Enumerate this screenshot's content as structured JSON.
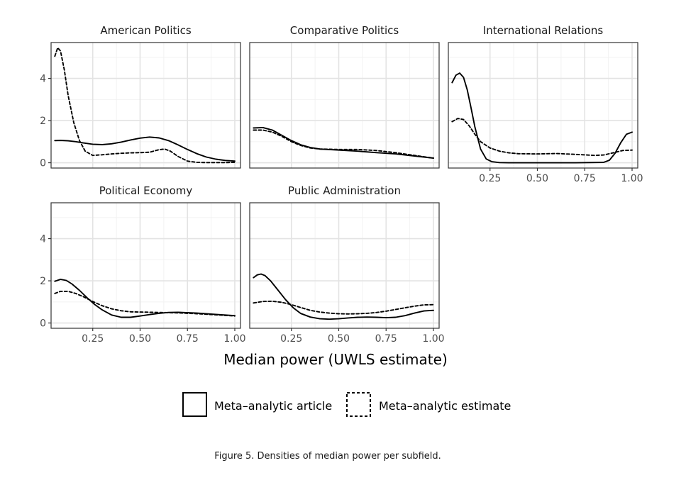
{
  "chart_data": {
    "type": "line",
    "x_axis_title": "Median power (UWLS estimate)",
    "xlim": [
      0.03,
      1.03
    ],
    "ylim": [
      -0.25,
      5.7
    ],
    "x_ticks": [
      "0.25",
      "0.50",
      "0.75",
      "1.00"
    ],
    "x_tick_values": [
      0.25,
      0.5,
      0.75,
      1.0
    ],
    "y_ticks": [
      "0",
      "2",
      "4"
    ],
    "y_tick_values": [
      0,
      2,
      4
    ],
    "grid": true,
    "legend": {
      "placement": "bottom",
      "entries": [
        {
          "name": "Meta–analytic article",
          "style": "solid"
        },
        {
          "name": "Meta–analytic estimate",
          "style": "dashed"
        }
      ]
    },
    "caption": "Figure 5. Densities of median power per subfield.",
    "panels": [
      {
        "title": "American Politics",
        "series": [
          {
            "name": "Meta–analytic article",
            "style": "solid",
            "x": [
              0.05,
              0.08,
              0.12,
              0.16,
              0.2,
              0.25,
              0.3,
              0.35,
              0.4,
              0.45,
              0.5,
              0.55,
              0.6,
              0.65,
              0.7,
              0.75,
              0.8,
              0.85,
              0.9,
              0.95,
              1.0
            ],
            "y": [
              1.05,
              1.06,
              1.04,
              1.0,
              0.94,
              0.88,
              0.86,
              0.9,
              0.98,
              1.08,
              1.17,
              1.22,
              1.18,
              1.05,
              0.85,
              0.63,
              0.43,
              0.27,
              0.17,
              0.11,
              0.08
            ]
          },
          {
            "name": "Meta–analytic estimate",
            "style": "dashed",
            "x": [
              0.05,
              0.065,
              0.08,
              0.1,
              0.12,
              0.15,
              0.18,
              0.21,
              0.25,
              0.3,
              0.35,
              0.4,
              0.45,
              0.5,
              0.55,
              0.6,
              0.63,
              0.66,
              0.7,
              0.75,
              0.8,
              0.85,
              0.9,
              0.95,
              1.0
            ],
            "y": [
              5.05,
              5.45,
              5.3,
              4.4,
              3.2,
              1.9,
              1.05,
              0.55,
              0.35,
              0.38,
              0.42,
              0.45,
              0.47,
              0.48,
              0.5,
              0.62,
              0.65,
              0.55,
              0.3,
              0.08,
              0.02,
              0.01,
              0.01,
              0.01,
              0.02
            ]
          }
        ]
      },
      {
        "title": "Comparative Politics",
        "series": [
          {
            "name": "Meta–analytic article",
            "style": "solid",
            "x": [
              0.05,
              0.1,
              0.15,
              0.2,
              0.25,
              0.3,
              0.35,
              0.4,
              0.5,
              0.6,
              0.7,
              0.8,
              0.9,
              1.0
            ],
            "y": [
              1.65,
              1.67,
              1.55,
              1.3,
              1.05,
              0.85,
              0.72,
              0.65,
              0.6,
              0.55,
              0.48,
              0.42,
              0.32,
              0.22
            ]
          },
          {
            "name": "Meta–analytic estimate",
            "style": "dashed",
            "x": [
              0.05,
              0.1,
              0.15,
              0.2,
              0.25,
              0.3,
              0.35,
              0.4,
              0.5,
              0.6,
              0.7,
              0.8,
              0.9,
              1.0
            ],
            "y": [
              1.55,
              1.55,
              1.45,
              1.25,
              1.0,
              0.82,
              0.7,
              0.65,
              0.63,
              0.63,
              0.58,
              0.48,
              0.35,
              0.22
            ]
          }
        ]
      },
      {
        "title": "International Relations",
        "series": [
          {
            "name": "Meta–analytic article",
            "style": "solid",
            "x": [
              0.05,
              0.07,
              0.09,
              0.11,
              0.13,
              0.15,
              0.17,
              0.2,
              0.23,
              0.26,
              0.3,
              0.35,
              0.5,
              0.7,
              0.85,
              0.88,
              0.91,
              0.94,
              0.97,
              1.0
            ],
            "y": [
              3.8,
              4.15,
              4.25,
              4.05,
              3.45,
              2.6,
              1.7,
              0.65,
              0.18,
              0.05,
              0.01,
              0.0,
              0.0,
              0.0,
              0.02,
              0.12,
              0.45,
              0.95,
              1.35,
              1.45
            ]
          },
          {
            "name": "Meta–analytic estimate",
            "style": "dashed",
            "x": [
              0.05,
              0.08,
              0.11,
              0.14,
              0.17,
              0.2,
              0.25,
              0.3,
              0.35,
              0.4,
              0.5,
              0.6,
              0.7,
              0.8,
              0.85,
              0.9,
              0.95,
              1.0
            ],
            "y": [
              1.95,
              2.1,
              2.05,
              1.75,
              1.35,
              1.0,
              0.7,
              0.55,
              0.47,
              0.43,
              0.42,
              0.44,
              0.4,
              0.35,
              0.37,
              0.47,
              0.58,
              0.6
            ]
          }
        ]
      },
      {
        "title": "Political Economy",
        "series": [
          {
            "name": "Meta–analytic article",
            "style": "solid",
            "x": [
              0.05,
              0.08,
              0.11,
              0.14,
              0.18,
              0.22,
              0.26,
              0.3,
              0.35,
              0.4,
              0.45,
              0.5,
              0.55,
              0.6,
              0.65,
              0.7,
              0.8,
              0.9,
              1.0
            ],
            "y": [
              1.98,
              2.07,
              2.02,
              1.85,
              1.55,
              1.2,
              0.88,
              0.62,
              0.38,
              0.27,
              0.27,
              0.33,
              0.4,
              0.46,
              0.5,
              0.51,
              0.47,
              0.41,
              0.35
            ]
          },
          {
            "name": "Meta–analytic estimate",
            "style": "dashed",
            "x": [
              0.05,
              0.08,
              0.12,
              0.16,
              0.2,
              0.25,
              0.3,
              0.35,
              0.4,
              0.45,
              0.5,
              0.6,
              0.7,
              0.8,
              0.9,
              1.0
            ],
            "y": [
              1.4,
              1.5,
              1.5,
              1.4,
              1.25,
              1.02,
              0.82,
              0.67,
              0.58,
              0.53,
              0.52,
              0.5,
              0.48,
              0.44,
              0.39,
              0.33
            ]
          }
        ]
      },
      {
        "title": "Public Administration",
        "series": [
          {
            "name": "Meta–analytic article",
            "style": "solid",
            "x": [
              0.05,
              0.07,
              0.09,
              0.11,
              0.14,
              0.18,
              0.22,
              0.26,
              0.3,
              0.35,
              0.4,
              0.45,
              0.5,
              0.55,
              0.6,
              0.65,
              0.7,
              0.75,
              0.8,
              0.85,
              0.9,
              0.95,
              1.0
            ],
            "y": [
              2.15,
              2.28,
              2.32,
              2.25,
              2.0,
              1.55,
              1.1,
              0.72,
              0.45,
              0.28,
              0.2,
              0.18,
              0.2,
              0.24,
              0.27,
              0.28,
              0.27,
              0.25,
              0.27,
              0.35,
              0.47,
              0.57,
              0.6
            ]
          },
          {
            "name": "Meta–analytic estimate",
            "style": "dashed",
            "x": [
              0.05,
              0.1,
              0.15,
              0.2,
              0.25,
              0.3,
              0.35,
              0.4,
              0.45,
              0.5,
              0.55,
              0.6,
              0.65,
              0.7,
              0.75,
              0.8,
              0.85,
              0.9,
              0.95,
              1.0
            ],
            "y": [
              0.95,
              1.02,
              1.03,
              0.98,
              0.87,
              0.73,
              0.6,
              0.52,
              0.47,
              0.44,
              0.43,
              0.44,
              0.46,
              0.5,
              0.56,
              0.64,
              0.72,
              0.8,
              0.86,
              0.87
            ]
          }
        ]
      }
    ]
  }
}
